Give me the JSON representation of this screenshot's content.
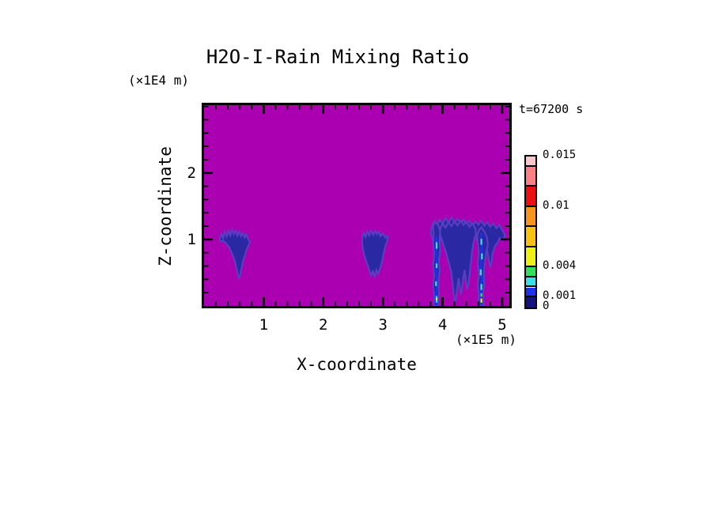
{
  "title": "H2O-I-Rain Mixing Ratio",
  "time_stamp": "t=67200 s",
  "axes": {
    "x_label": "X-coordinate",
    "y_label": "Z-coordinate",
    "x_units": "(×1E5 m)",
    "y_units": "(×1E4 m)"
  },
  "chart_data": {
    "type": "heatmap",
    "title": "H2O-I-Rain Mixing Ratio",
    "xlabel": "X-coordinate",
    "ylabel": "Z-coordinate",
    "x_units_scale": "(×1E5 m)",
    "y_units_scale": "(×1E4 m)",
    "time_annotation": "t=67200 s",
    "xlim": [
      0,
      5.12
    ],
    "ylim": [
      0,
      3.02
    ],
    "x_major_ticks": [
      1,
      2,
      3,
      4,
      5
    ],
    "x_tick_labels": [
      "1",
      "2",
      "3",
      "4",
      "5"
    ],
    "x_minor_step": 0.2,
    "y_major_ticks": [
      1,
      2
    ],
    "y_tick_labels": [
      "1",
      "2"
    ],
    "y_minor_step": 0.2,
    "grid": false,
    "colors": {
      "background_field": "#AB00B1",
      "cell_fill": "#2B28A4",
      "cell_fringe": "#5B3DC4",
      "axis": "#000000"
    },
    "colorbar": {
      "position": "right",
      "range": [
        0,
        0.015
      ],
      "levels": [
        0,
        0.001,
        0.002,
        0.003,
        0.004,
        0.006,
        0.008,
        0.01,
        0.012,
        0.014,
        0.015
      ],
      "colors": [
        "#14137E",
        "#1D33E6",
        "#3BDFE5",
        "#2BE45C",
        "#EFF019",
        "#F9C20E",
        "#F7941D",
        "#EC1013",
        "#F98185",
        "#F9C6CB"
      ],
      "labeled_levels": [
        {
          "value": 0.015,
          "label": "0.015"
        },
        {
          "value": 0.01,
          "label": "0.01"
        },
        {
          "value": 0.004,
          "label": "0.004"
        },
        {
          "value": 0.001,
          "label": "0.001"
        },
        {
          "value": 0,
          "label": "0"
        }
      ]
    },
    "features": [
      {
        "name": "rain-cell-west",
        "points": [
          [
            0.26,
            1.0
          ],
          [
            0.29,
            1.08
          ],
          [
            0.32,
            1.02
          ],
          [
            0.35,
            1.12
          ],
          [
            0.38,
            1.05
          ],
          [
            0.41,
            1.13
          ],
          [
            0.44,
            1.06
          ],
          [
            0.47,
            1.15
          ],
          [
            0.5,
            1.08
          ],
          [
            0.53,
            1.13
          ],
          [
            0.56,
            1.06
          ],
          [
            0.59,
            1.12
          ],
          [
            0.62,
            1.05
          ],
          [
            0.65,
            1.1
          ],
          [
            0.68,
            1.03
          ],
          [
            0.71,
            1.08
          ],
          [
            0.74,
            1.0
          ],
          [
            0.77,
            0.96
          ],
          [
            0.74,
            0.9
          ],
          [
            0.71,
            0.84
          ],
          [
            0.69,
            0.77
          ],
          [
            0.66,
            0.7
          ],
          [
            0.64,
            0.62
          ],
          [
            0.62,
            0.53
          ],
          [
            0.6,
            0.44
          ],
          [
            0.58,
            0.42
          ],
          [
            0.56,
            0.5
          ],
          [
            0.54,
            0.58
          ],
          [
            0.52,
            0.66
          ],
          [
            0.49,
            0.74
          ],
          [
            0.46,
            0.81
          ],
          [
            0.42,
            0.88
          ],
          [
            0.37,
            0.94
          ],
          [
            0.32,
            0.98
          ],
          [
            0.28,
            0.97
          ]
        ]
      },
      {
        "name": "rain-cell-central",
        "points": [
          [
            2.65,
            1.02
          ],
          [
            2.68,
            1.1
          ],
          [
            2.71,
            1.04
          ],
          [
            2.74,
            1.12
          ],
          [
            2.77,
            1.06
          ],
          [
            2.8,
            1.13
          ],
          [
            2.84,
            1.07
          ],
          [
            2.87,
            1.13
          ],
          [
            2.9,
            1.08
          ],
          [
            2.93,
            1.12
          ],
          [
            2.96,
            1.05
          ],
          [
            3.0,
            1.09
          ],
          [
            3.04,
            1.03
          ],
          [
            3.08,
            1.05
          ],
          [
            3.07,
            0.97
          ],
          [
            3.04,
            0.9
          ],
          [
            3.02,
            0.82
          ],
          [
            3.0,
            0.74
          ],
          [
            2.98,
            0.65
          ],
          [
            2.95,
            0.56
          ],
          [
            2.92,
            0.48
          ],
          [
            2.89,
            0.54
          ],
          [
            2.86,
            0.44
          ],
          [
            2.83,
            0.52
          ],
          [
            2.8,
            0.46
          ],
          [
            2.77,
            0.54
          ],
          [
            2.74,
            0.62
          ],
          [
            2.71,
            0.7
          ],
          [
            2.68,
            0.79
          ],
          [
            2.66,
            0.88
          ],
          [
            2.65,
            0.95
          ]
        ]
      },
      {
        "name": "rain-anvil-band-east",
        "points": [
          [
            3.8,
            1.1
          ],
          [
            3.83,
            1.22
          ],
          [
            3.87,
            1.28
          ],
          [
            3.91,
            1.22
          ],
          [
            3.95,
            1.3
          ],
          [
            4.0,
            1.24
          ],
          [
            4.05,
            1.32
          ],
          [
            4.1,
            1.25
          ],
          [
            4.15,
            1.33
          ],
          [
            4.2,
            1.26
          ],
          [
            4.25,
            1.31
          ],
          [
            4.3,
            1.24
          ],
          [
            4.35,
            1.3
          ],
          [
            4.4,
            1.23
          ],
          [
            4.45,
            1.28
          ],
          [
            4.5,
            1.21
          ],
          [
            4.55,
            1.27
          ],
          [
            4.6,
            1.22
          ],
          [
            4.65,
            1.28
          ],
          [
            4.7,
            1.21
          ],
          [
            4.75,
            1.26
          ],
          [
            4.8,
            1.19
          ],
          [
            4.85,
            1.24
          ],
          [
            4.9,
            1.17
          ],
          [
            4.95,
            1.22
          ],
          [
            5.0,
            1.14
          ],
          [
            5.05,
            1.06
          ],
          [
            5.0,
            0.98
          ],
          [
            4.96,
            1.02
          ],
          [
            4.92,
            0.95
          ],
          [
            4.88,
            0.9
          ],
          [
            4.84,
            0.8
          ],
          [
            4.82,
            0.66
          ],
          [
            4.8,
            0.58
          ],
          [
            4.78,
            0.66
          ],
          [
            4.76,
            0.78
          ],
          [
            4.73,
            0.88
          ],
          [
            4.7,
            0.95
          ],
          [
            4.66,
            0.92
          ],
          [
            4.62,
            0.96
          ],
          [
            4.58,
            0.99
          ],
          [
            4.55,
            1.03
          ],
          [
            4.5,
            0.99
          ],
          [
            4.45,
            1.04
          ],
          [
            4.4,
            0.98
          ],
          [
            4.35,
            1.03
          ],
          [
            4.3,
            0.97
          ],
          [
            4.25,
            1.02
          ],
          [
            4.2,
            0.96
          ],
          [
            4.15,
            1.02
          ],
          [
            4.1,
            0.97
          ],
          [
            4.05,
            1.03
          ],
          [
            4.0,
            0.98
          ],
          [
            3.96,
            1.02
          ],
          [
            3.92,
            0.96
          ],
          [
            3.88,
            1.0
          ],
          [
            3.84,
            0.98
          ]
        ]
      },
      {
        "name": "rain-cell-east-main",
        "points": [
          [
            3.96,
            1.16
          ],
          [
            4.0,
            1.24
          ],
          [
            4.05,
            1.18
          ],
          [
            4.1,
            1.26
          ],
          [
            4.15,
            1.2
          ],
          [
            4.2,
            1.27
          ],
          [
            4.25,
            1.21
          ],
          [
            4.3,
            1.28
          ],
          [
            4.35,
            1.22
          ],
          [
            4.4,
            1.26
          ],
          [
            4.45,
            1.19
          ],
          [
            4.5,
            1.24
          ],
          [
            4.55,
            1.17
          ],
          [
            4.56,
            1.08
          ],
          [
            4.53,
            1.0
          ],
          [
            4.51,
            0.9
          ],
          [
            4.49,
            0.78
          ],
          [
            4.47,
            0.62
          ],
          [
            4.45,
            0.45
          ],
          [
            4.43,
            0.3
          ],
          [
            4.41,
            0.25
          ],
          [
            4.39,
            0.4
          ],
          [
            4.37,
            0.54
          ],
          [
            4.35,
            0.44
          ],
          [
            4.33,
            0.3
          ],
          [
            4.31,
            0.17
          ],
          [
            4.29,
            0.28
          ],
          [
            4.27,
            0.42
          ],
          [
            4.25,
            0.3
          ],
          [
            4.23,
            0.15
          ],
          [
            4.21,
            0.05
          ],
          [
            4.19,
            0.16
          ],
          [
            4.17,
            0.32
          ],
          [
            4.15,
            0.48
          ],
          [
            4.12,
            0.6
          ],
          [
            4.09,
            0.7
          ],
          [
            4.06,
            0.8
          ],
          [
            4.02,
            0.9
          ],
          [
            3.99,
            0.99
          ],
          [
            3.96,
            1.07
          ]
        ]
      },
      {
        "name": "rain-shaft-east-left",
        "points": [
          [
            3.84,
            1.2
          ],
          [
            3.88,
            1.26
          ],
          [
            3.93,
            1.21
          ],
          [
            3.96,
            1.12
          ],
          [
            3.95,
            0.98
          ],
          [
            3.96,
            0.84
          ],
          [
            3.94,
            0.68
          ],
          [
            3.95,
            0.52
          ],
          [
            3.93,
            0.36
          ],
          [
            3.94,
            0.2
          ],
          [
            3.93,
            0.06
          ],
          [
            3.93,
            0.0
          ],
          [
            3.85,
            0.0
          ],
          [
            3.86,
            0.14
          ],
          [
            3.84,
            0.3
          ],
          [
            3.86,
            0.46
          ],
          [
            3.84,
            0.62
          ],
          [
            3.86,
            0.78
          ],
          [
            3.84,
            0.94
          ],
          [
            3.85,
            1.08
          ]
        ]
      },
      {
        "name": "rain-shaft-east-right",
        "points": [
          [
            4.58,
            1.06
          ],
          [
            4.61,
            1.14
          ],
          [
            4.65,
            1.18
          ],
          [
            4.7,
            1.12
          ],
          [
            4.74,
            1.04
          ],
          [
            4.76,
            0.92
          ],
          [
            4.73,
            0.8
          ],
          [
            4.71,
            0.66
          ],
          [
            4.69,
            0.5
          ],
          [
            4.7,
            0.34
          ],
          [
            4.68,
            0.18
          ],
          [
            4.69,
            0.04
          ],
          [
            4.69,
            0.0
          ],
          [
            4.6,
            0.0
          ],
          [
            4.61,
            0.16
          ],
          [
            4.59,
            0.32
          ],
          [
            4.61,
            0.48
          ],
          [
            4.59,
            0.64
          ],
          [
            4.61,
            0.8
          ],
          [
            4.59,
            0.94
          ]
        ]
      }
    ],
    "overlays": [
      {
        "name": "shaft-left-core",
        "type": "polyline",
        "color": "#1D33E6",
        "width": 2.6,
        "points": [
          [
            3.9,
            0.02
          ],
          [
            3.89,
            0.18
          ],
          [
            3.91,
            0.36
          ],
          [
            3.89,
            0.55
          ],
          [
            3.9,
            0.74
          ],
          [
            3.89,
            0.92
          ],
          [
            3.9,
            1.05
          ]
        ]
      },
      {
        "name": "shaft-left-cyan",
        "type": "segments",
        "color": "#3BDFE5",
        "width": 2.2,
        "segments": [
          [
            [
              3.9,
              0.05
            ],
            [
              3.9,
              0.15
            ]
          ],
          [
            [
              3.89,
              0.3
            ],
            [
              3.89,
              0.37
            ]
          ],
          [
            [
              3.9,
              0.57
            ],
            [
              3.9,
              0.64
            ]
          ],
          [
            [
              3.9,
              0.86
            ],
            [
              3.9,
              0.96
            ]
          ]
        ]
      },
      {
        "name": "shaft-left-yellow",
        "type": "segments",
        "color": "#EFF019",
        "width": 2.2,
        "segments": [
          [
            [
              3.9,
              0.09
            ],
            [
              3.9,
              0.12
            ]
          ]
        ]
      },
      {
        "name": "shaft-right-core",
        "type": "polyline",
        "color": "#1D33E6",
        "width": 3.0,
        "points": [
          [
            4.65,
            0.02
          ],
          [
            4.64,
            0.2
          ],
          [
            4.66,
            0.4
          ],
          [
            4.64,
            0.6
          ],
          [
            4.66,
            0.8
          ],
          [
            4.65,
            0.98
          ],
          [
            4.65,
            1.1
          ]
        ]
      },
      {
        "name": "shaft-right-cyan",
        "type": "segments",
        "color": "#3BDFE5",
        "width": 2.2,
        "segments": [
          [
            [
              4.65,
              0.24
            ],
            [
              4.65,
              0.33
            ]
          ],
          [
            [
              4.64,
              0.46
            ],
            [
              4.64,
              0.55
            ]
          ],
          [
            [
              4.66,
              0.7
            ],
            [
              4.66,
              0.79
            ]
          ],
          [
            [
              4.65,
              0.92
            ],
            [
              4.65,
              1.01
            ]
          ]
        ]
      },
      {
        "name": "shaft-right-green",
        "type": "segments",
        "color": "#2BE45C",
        "width": 2.2,
        "segments": [
          [
            [
              4.65,
              0.14
            ],
            [
              4.65,
              0.19
            ]
          ]
        ]
      },
      {
        "name": "shaft-right-yellow",
        "type": "segments",
        "color": "#EFF019",
        "width": 2.2,
        "segments": [
          [
            [
              4.65,
              0.05
            ],
            [
              4.65,
              0.11
            ]
          ]
        ]
      }
    ]
  }
}
